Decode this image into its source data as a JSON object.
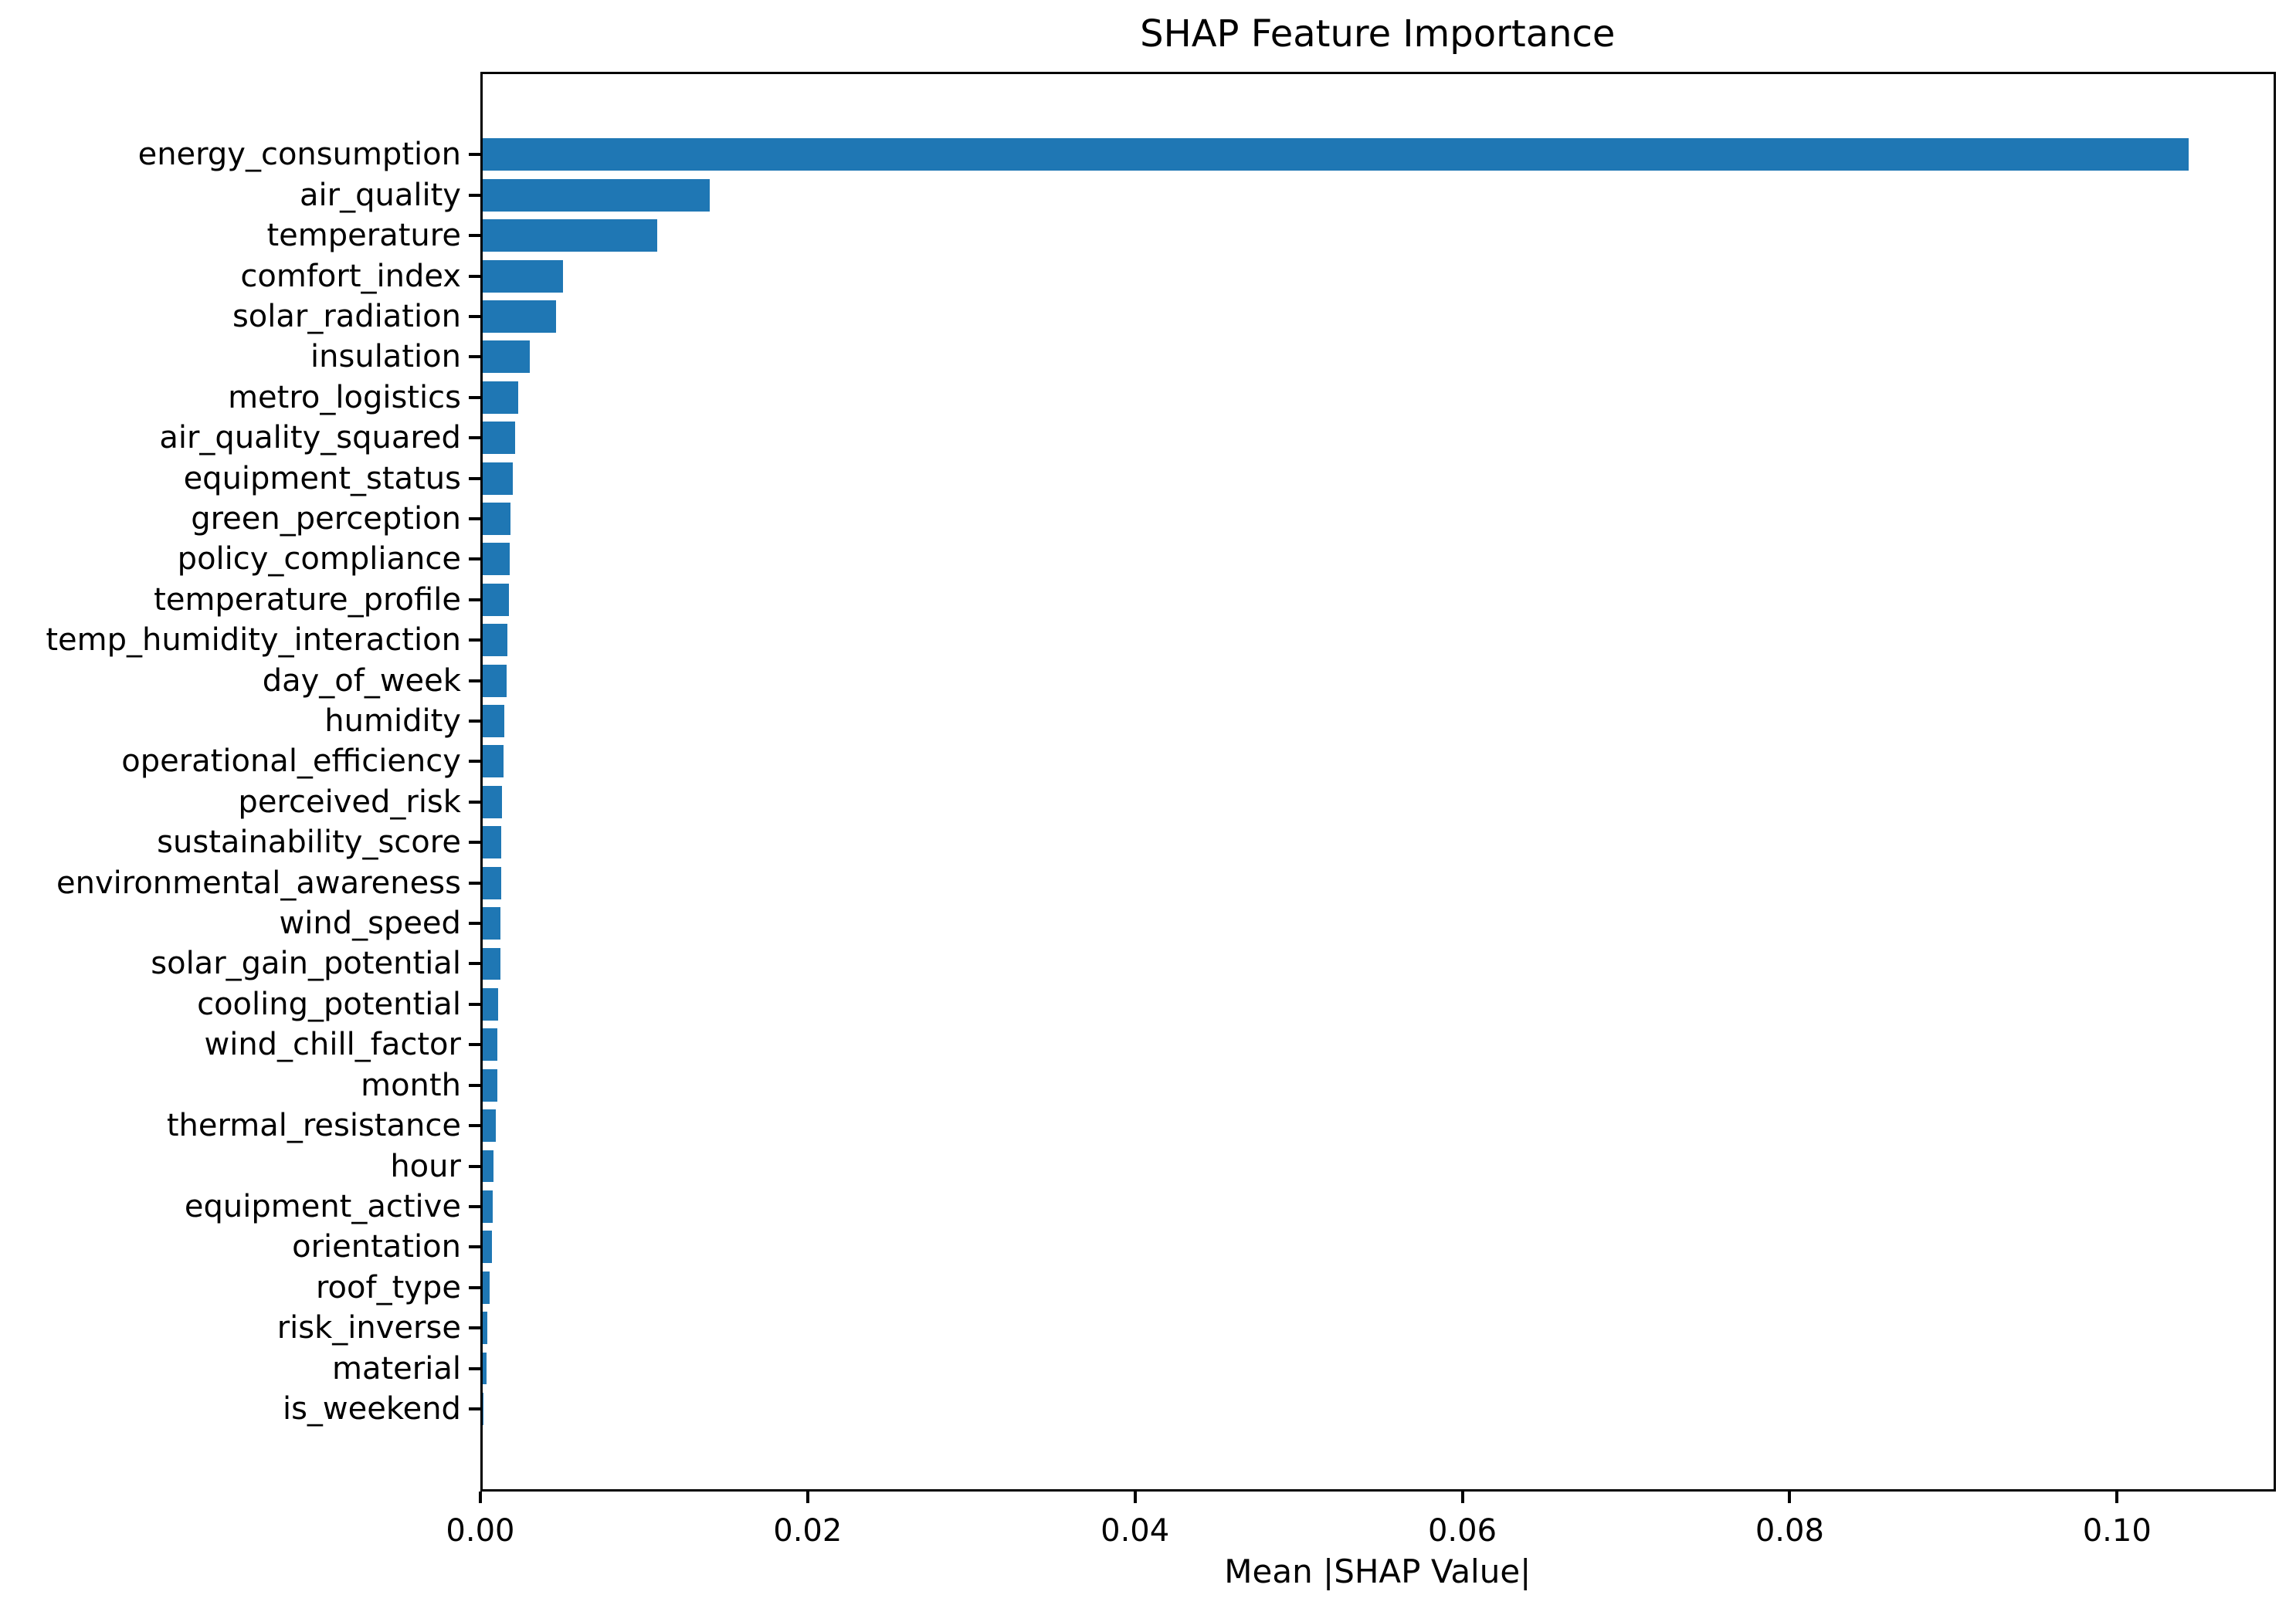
{
  "chart_data": {
    "type": "bar",
    "orientation": "horizontal",
    "title": "SHAP Feature Importance",
    "xlabel": "Mean |SHAP Value|",
    "ylabel": "",
    "bar_color": "#1f77b4",
    "grid": false,
    "legend": false,
    "xlim": [
      0,
      0.1097
    ],
    "xticks": [
      {
        "value": 0.0,
        "label": "0.00"
      },
      {
        "value": 0.02,
        "label": "0.02"
      },
      {
        "value": 0.04,
        "label": "0.04"
      },
      {
        "value": 0.06,
        "label": "0.06"
      },
      {
        "value": 0.08,
        "label": "0.08"
      },
      {
        "value": 0.1,
        "label": "0.10"
      }
    ],
    "categories": [
      "energy_consumption",
      "air_quality",
      "temperature",
      "comfort_index",
      "solar_radiation",
      "insulation",
      "metro_logistics",
      "air_quality_squared",
      "equipment_status",
      "green_perception",
      "policy_compliance",
      "temperature_profile",
      "temp_humidity_interaction",
      "day_of_week",
      "humidity",
      "operational_efficiency",
      "perceived_risk",
      "sustainability_score",
      "environmental_awareness",
      "wind_speed",
      "solar_gain_potential",
      "cooling_potential",
      "wind_chill_factor",
      "month",
      "thermal_resistance",
      "hour",
      "equipment_active",
      "orientation",
      "roof_type",
      "risk_inverse",
      "material",
      "is_weekend"
    ],
    "values": [
      0.1045,
      0.0139,
      0.0107,
      0.0049,
      0.0045,
      0.0029,
      0.0022,
      0.00198,
      0.00185,
      0.00172,
      0.00165,
      0.0016,
      0.00152,
      0.00147,
      0.00135,
      0.00128,
      0.0012,
      0.00115,
      0.00112,
      0.0011,
      0.00108,
      0.00095,
      0.00092,
      0.00088,
      0.00082,
      0.00065,
      0.0006,
      0.00055,
      0.00042,
      0.00029,
      0.00025,
      2e-05
    ]
  }
}
